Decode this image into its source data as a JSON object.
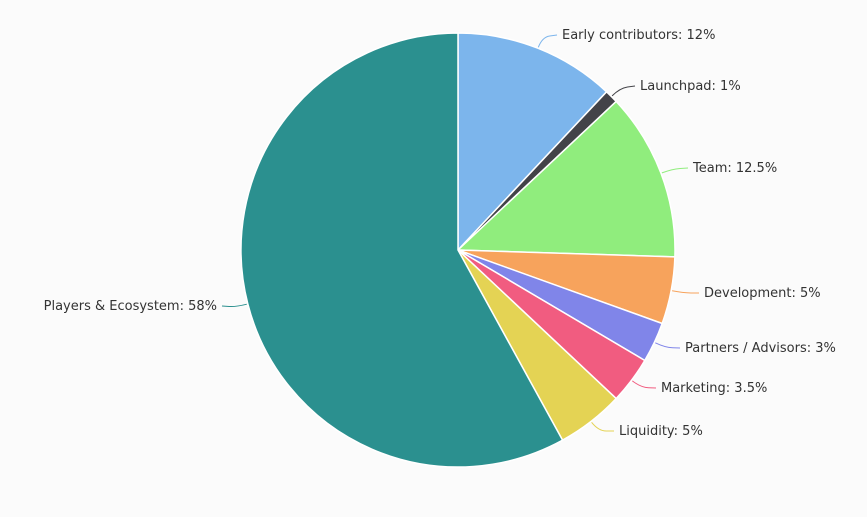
{
  "chart_data": {
    "type": "pie",
    "title": "",
    "slices": [
      {
        "name": "Early contributors",
        "value": 12,
        "label": "Early contributors: 12%",
        "color": "#7cb5ec"
      },
      {
        "name": "Launchpad",
        "value": 1,
        "label": "Launchpad: 1%",
        "color": "#434348"
      },
      {
        "name": "Team",
        "value": 12.5,
        "label": "Team: 12.5%",
        "color": "#90ed7d"
      },
      {
        "name": "Development",
        "value": 5,
        "label": "Development: 5%",
        "color": "#f7a35c"
      },
      {
        "name": "Partners / Advisors",
        "value": 3,
        "label": "Partners / Advisors: 3%",
        "color": "#8085e9"
      },
      {
        "name": "Marketing",
        "value": 3.5,
        "label": "Marketing: 3.5%",
        "color": "#f15c80"
      },
      {
        "name": "Liquidity",
        "value": 5,
        "label": "Liquidity: 5%",
        "color": "#e4d354"
      },
      {
        "name": "Players & Ecosystem",
        "value": 58,
        "label": "Players & Ecosystem: 58%",
        "color": "#2b908f"
      }
    ],
    "start_angle": "12 o'clock",
    "direction": "clockwise",
    "legend": "none"
  }
}
